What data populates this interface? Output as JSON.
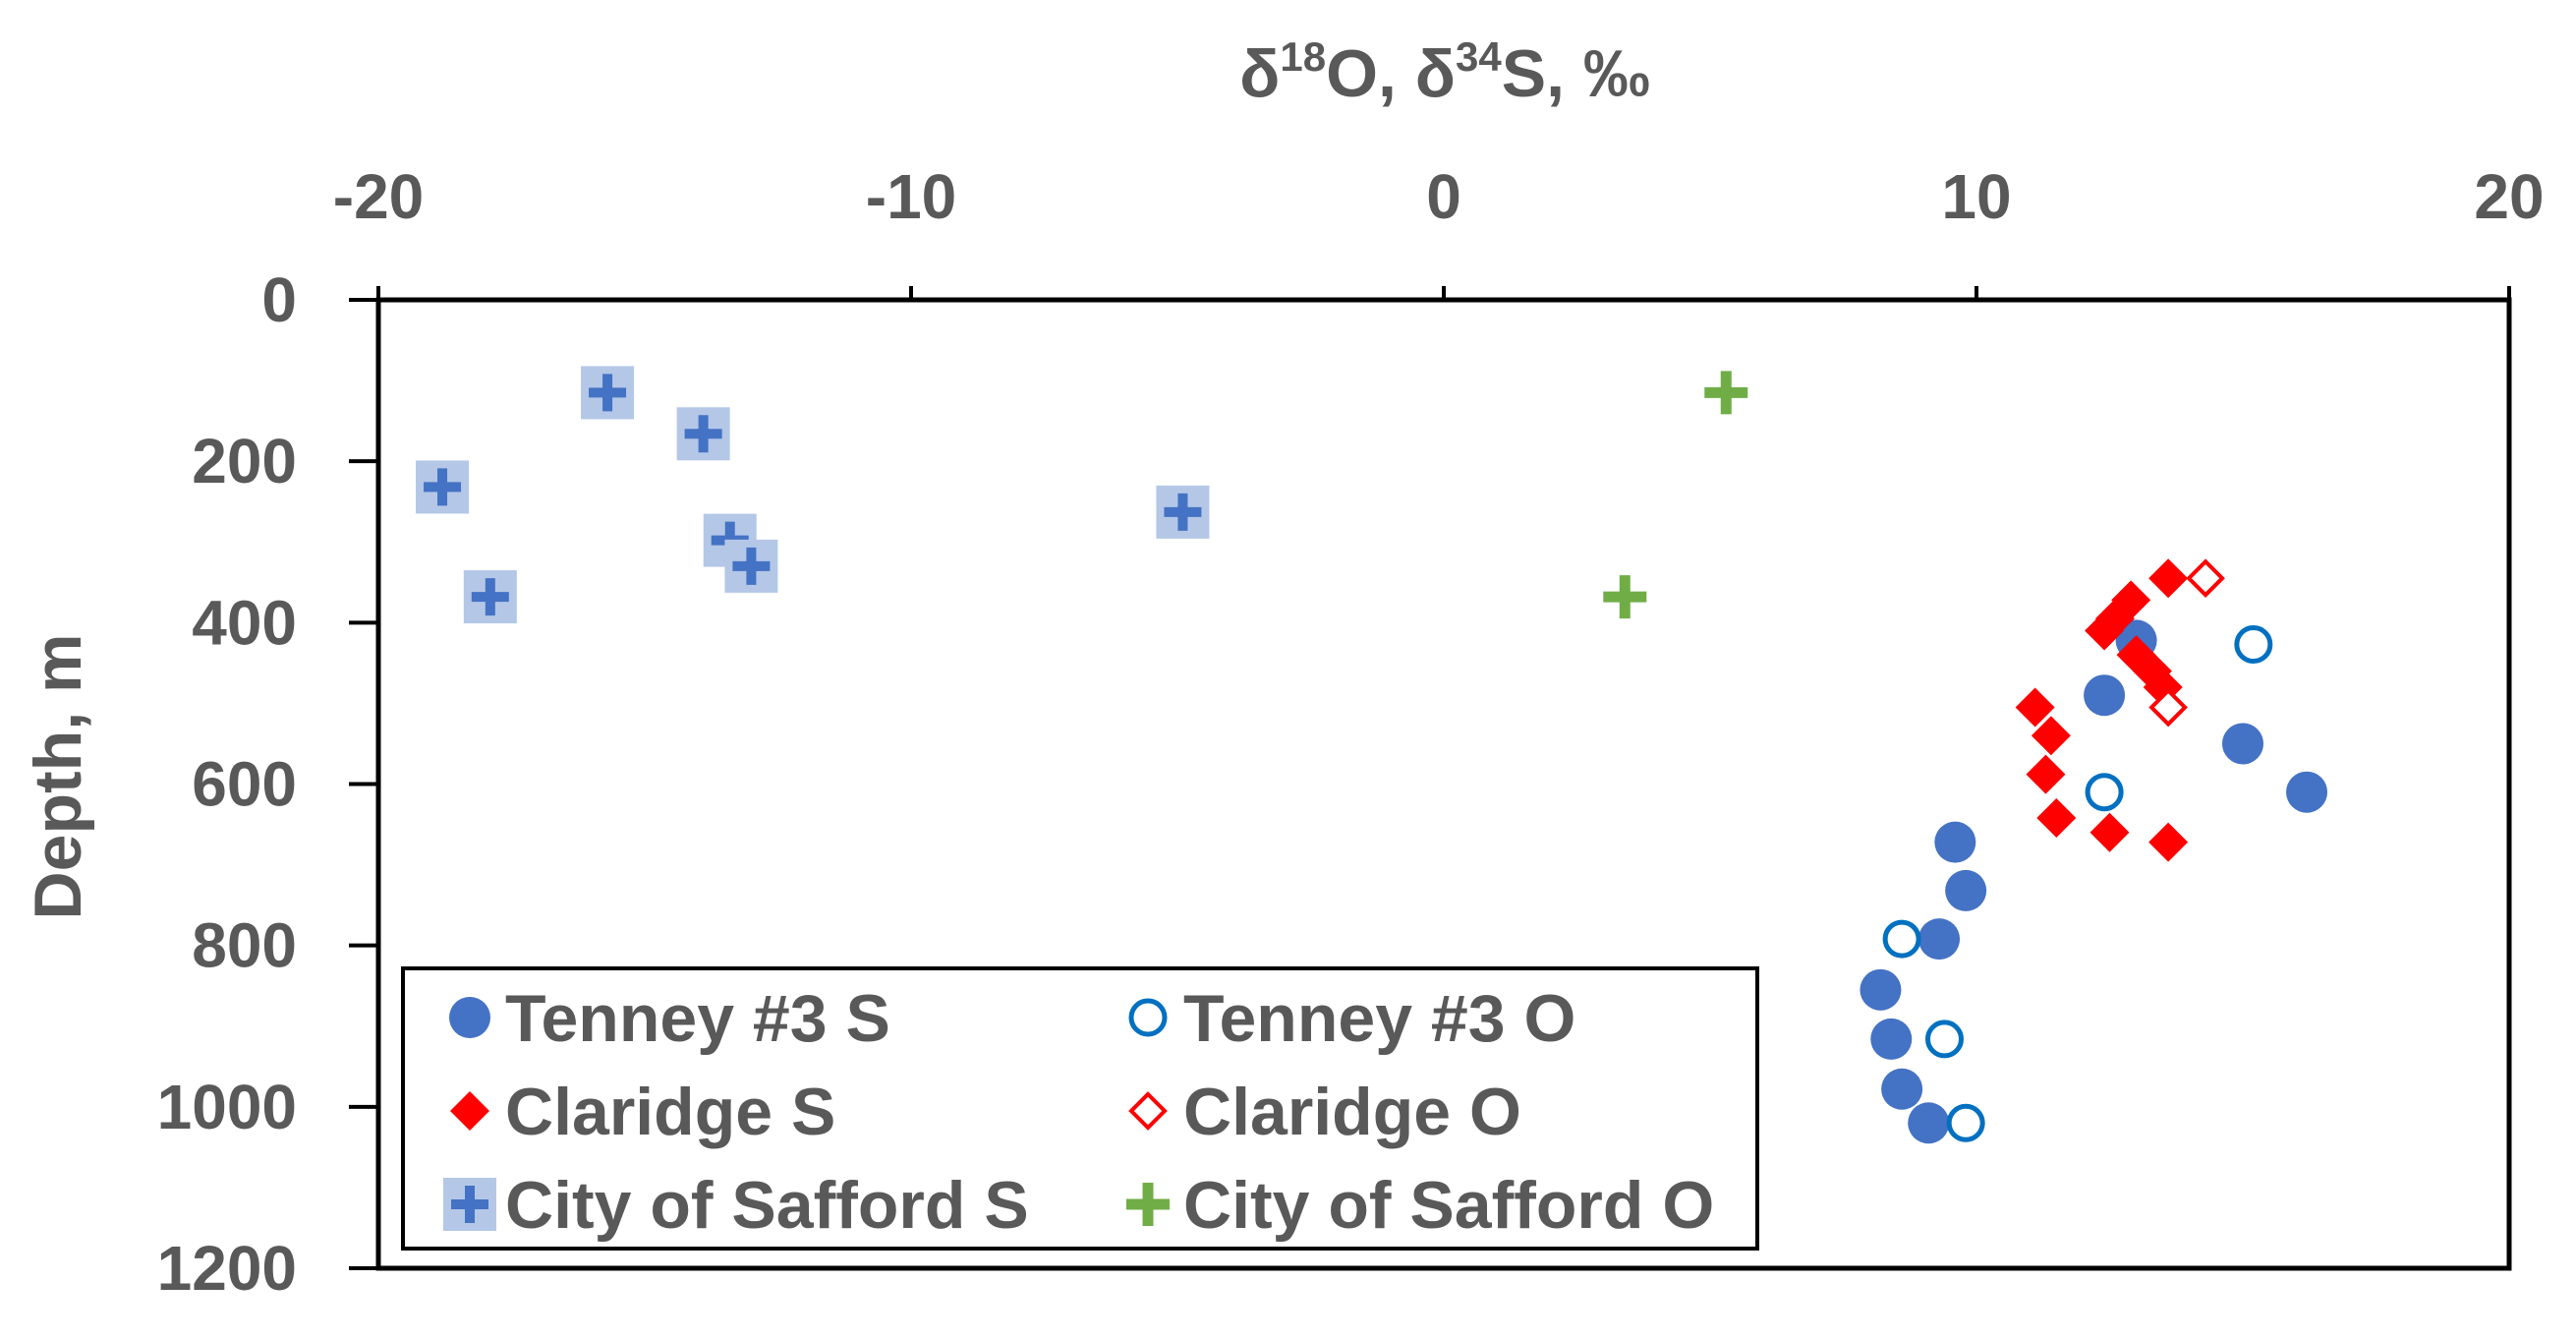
{
  "chart_data": {
    "type": "scatter",
    "title": "",
    "xlabel_parts": [
      "δ",
      "18",
      "O, δ",
      "34",
      "S, ‰"
    ],
    "ylabel": "Depth, m",
    "xlim": [
      -20,
      20
    ],
    "ylim": [
      0,
      1200
    ],
    "x_ticks": [
      -20,
      -10,
      0,
      10,
      20
    ],
    "y_ticks": [
      0,
      200,
      400,
      600,
      800,
      1000,
      1200
    ],
    "x_tick_labels": [
      "-20",
      "-10",
      "0",
      "10",
      "20"
    ],
    "y_tick_labels": [
      "0",
      "200",
      "400",
      "600",
      "800",
      "1000",
      "1200"
    ],
    "x_axis_position": "top",
    "y_axis_inverted": true,
    "legend_position": "bottom-left",
    "series": [
      {
        "name": "Tenney #3 S",
        "marker": "circle-filled",
        "color": "#4472C4",
        "points": [
          [
            13.0,
            422
          ],
          [
            12.4,
            490
          ],
          [
            15.0,
            550
          ],
          [
            16.2,
            610
          ],
          [
            9.6,
            672
          ],
          [
            9.8,
            732
          ],
          [
            9.3,
            792
          ],
          [
            8.2,
            855
          ],
          [
            8.4,
            916
          ],
          [
            8.6,
            978
          ],
          [
            9.1,
            1020
          ]
        ]
      },
      {
        "name": "Tenney #3 O",
        "marker": "circle-open",
        "color": "#0070C0",
        "points": [
          [
            15.2,
            427
          ],
          [
            12.4,
            610
          ],
          [
            8.6,
            792
          ],
          [
            9.4,
            916
          ],
          [
            9.8,
            1020
          ]
        ]
      },
      {
        "name": "Claridge S",
        "marker": "diamond-filled",
        "color": "#FF0000",
        "points": [
          [
            13.6,
            345
          ],
          [
            12.9,
            372
          ],
          [
            12.6,
            395
          ],
          [
            12.4,
            410
          ],
          [
            13.0,
            440
          ],
          [
            13.3,
            460
          ],
          [
            13.5,
            480
          ],
          [
            11.1,
            505
          ],
          [
            11.4,
            540
          ],
          [
            11.3,
            588
          ],
          [
            11.5,
            642
          ],
          [
            12.5,
            660
          ],
          [
            13.6,
            672
          ]
        ]
      },
      {
        "name": "Claridge O",
        "marker": "diamond-open",
        "color": "#FF0000",
        "points": [
          [
            14.3,
            345
          ],
          [
            13.6,
            505
          ]
        ]
      },
      {
        "name": "City of Safford S",
        "marker": "plus-box",
        "color": "#4472C4",
        "points": [
          [
            -15.7,
            115
          ],
          [
            -13.9,
            166
          ],
          [
            -18.8,
            232
          ],
          [
            -4.9,
            263
          ],
          [
            -13.4,
            298
          ],
          [
            -13.0,
            330
          ],
          [
            -17.9,
            368
          ]
        ]
      },
      {
        "name": "City of Safford O",
        "marker": "plus",
        "color": "#70AD47",
        "points": [
          [
            5.3,
            115
          ],
          [
            3.4,
            368
          ]
        ]
      }
    ],
    "legend": {
      "rows": [
        [
          "Tenney #3 S",
          "Tenney #3 O"
        ],
        [
          "Claridge S",
          "Claridge O"
        ],
        [
          "City of Safford S",
          "City of Safford O"
        ]
      ]
    }
  }
}
